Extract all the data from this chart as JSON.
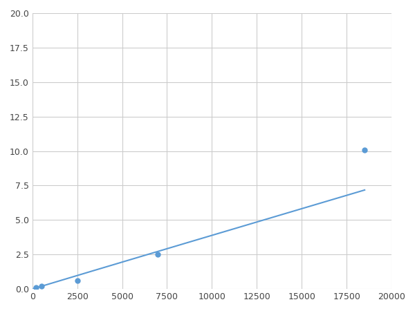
{
  "x": [
    0,
    200,
    500,
    2500,
    7000,
    18500
  ],
  "y": [
    0.0,
    0.1,
    0.2,
    0.6,
    2.5,
    10.1
  ],
  "line_color": "#5b9bd5",
  "marker_x": [
    200,
    500,
    2500,
    7000,
    18500
  ],
  "marker_y": [
    0.1,
    0.2,
    0.6,
    2.5,
    10.1
  ],
  "marker_color": "#5b9bd5",
  "marker_size": 5,
  "xlim": [
    0,
    20000
  ],
  "ylim": [
    0,
    20
  ],
  "xticks": [
    0,
    2500,
    5000,
    7500,
    10000,
    12500,
    15000,
    17500,
    20000
  ],
  "yticks": [
    0.0,
    2.5,
    5.0,
    7.5,
    10.0,
    12.5,
    15.0,
    17.5,
    20.0
  ],
  "grid_color": "#cccccc",
  "background_color": "#ffffff",
  "figsize": [
    6.0,
    4.5
  ],
  "dpi": 100
}
